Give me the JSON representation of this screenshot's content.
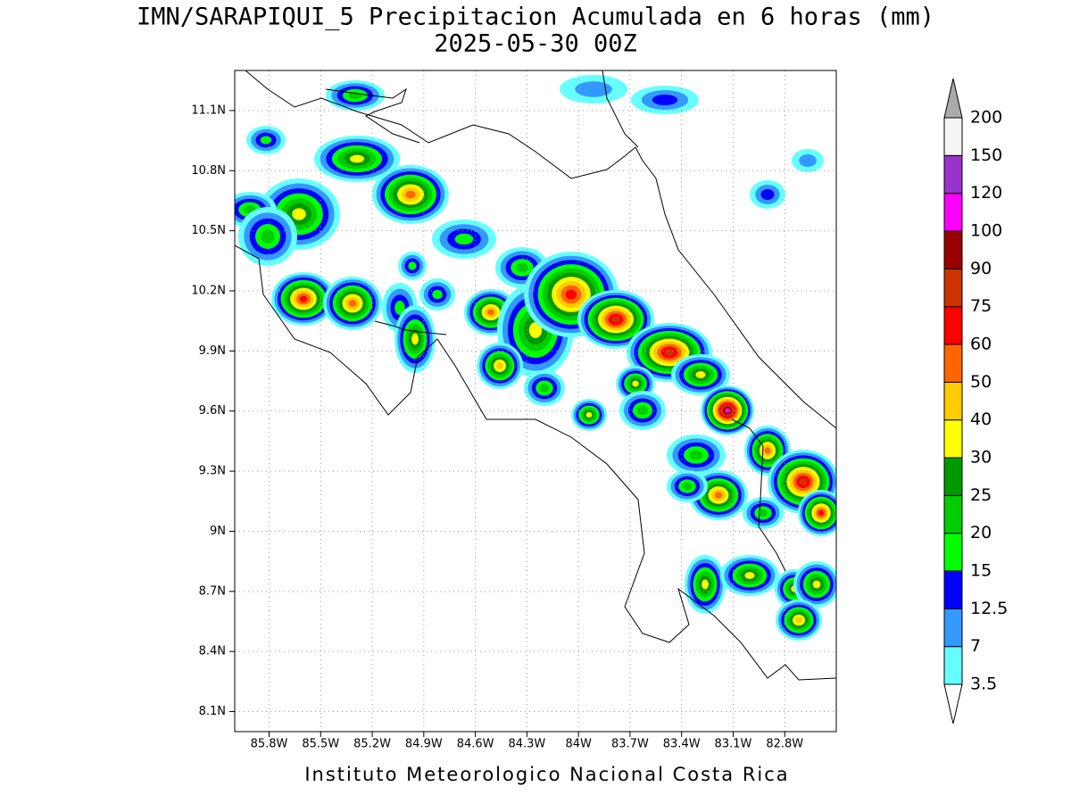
{
  "chart_data": {
    "type": "contour_map",
    "title": "IMN/SARAPIQUI_5 Precipitacion Acumulada en 6 horas (mm)",
    "subtitle": "2025-05-30 00Z",
    "footer": "Instituto Meteorologico Nacional Costa Rica",
    "xlim": [
      -86.0,
      -82.5
    ],
    "ylim": [
      8.0,
      11.3
    ],
    "grid": true,
    "xticks": [
      {
        "value": -85.8,
        "label": "85.8W"
      },
      {
        "value": -85.5,
        "label": "85.5W"
      },
      {
        "value": -85.2,
        "label": "85.2W"
      },
      {
        "value": -84.9,
        "label": "84.9W"
      },
      {
        "value": -84.6,
        "label": "84.6W"
      },
      {
        "value": -84.3,
        "label": "84.3W"
      },
      {
        "value": -84.0,
        "label": "84W"
      },
      {
        "value": -83.7,
        "label": "83.7W"
      },
      {
        "value": -83.4,
        "label": "83.4W"
      },
      {
        "value": -83.1,
        "label": "83.1W"
      },
      {
        "value": -82.8,
        "label": "82.8W"
      }
    ],
    "yticks": [
      {
        "value": 8.1,
        "label": "8.1N"
      },
      {
        "value": 8.4,
        "label": "8.4N"
      },
      {
        "value": 8.7,
        "label": "8.7N"
      },
      {
        "value": 9.0,
        "label": "9N"
      },
      {
        "value": 9.3,
        "label": "9.3N"
      },
      {
        "value": 9.6,
        "label": "9.6N"
      },
      {
        "value": 9.9,
        "label": "9.9N"
      },
      {
        "value": 10.2,
        "label": "10.2N"
      },
      {
        "value": 10.5,
        "label": "10.5N"
      },
      {
        "value": 10.8,
        "label": "10.8N"
      },
      {
        "value": 11.1,
        "label": "11.1N"
      }
    ],
    "colorbar": {
      "levels": [
        3.5,
        7,
        12.5,
        15,
        20,
        25,
        30,
        40,
        50,
        60,
        75,
        90,
        100,
        120,
        150,
        200
      ],
      "colors": [
        "#66ffff",
        "#3399ff",
        "#0000ff",
        "#00ff00",
        "#00cc00",
        "#009900",
        "#ffff00",
        "#ffcc00",
        "#ff6600",
        "#ff0000",
        "#cc3300",
        "#990000",
        "#ff00ff",
        "#9933cc",
        "#f5f5f5"
      ],
      "under_color": "#ffffff",
      "over_color": "#aaaaaa"
    }
  }
}
